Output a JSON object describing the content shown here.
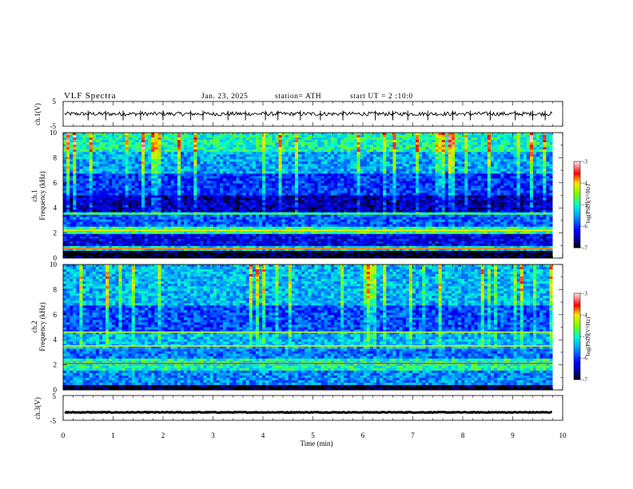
{
  "header": {
    "title": "VLF Spectra",
    "date": "Jan. 23, 2025",
    "station": "station= ATH",
    "start": "start UT =   2 :10:0"
  },
  "chart_data": [
    {
      "type": "line",
      "name": "ch1-waveform",
      "ylabel": "ch.1(V)",
      "ylim": [
        -5,
        5
      ],
      "ytick_labels": [
        "5",
        "-5"
      ],
      "xlim": [
        0,
        10
      ],
      "x_end_min": 9.8,
      "mean_value": 0,
      "noise_amplitude": 0.8,
      "spikes_min": [
        0.5,
        0.85,
        1.2,
        1.55,
        2.0,
        2.55,
        2.8,
        3.3,
        3.65,
        4.05,
        4.3,
        4.75,
        5.15,
        5.6,
        6.25,
        6.6,
        6.9,
        7.3,
        7.8,
        8.15,
        8.55,
        9.05,
        9.4,
        9.65
      ]
    },
    {
      "type": "heatmap",
      "name": "ch1-spectrogram",
      "ylabel": "ch.1",
      "ylabel2": "Frequency (kHz)",
      "ylim": [
        0,
        10
      ],
      "ytick_labels": [
        "10",
        "8",
        "6",
        "4",
        "2",
        "0"
      ],
      "xlim": [
        0,
        10
      ],
      "x_end_min": 9.8,
      "colorbar": {
        "label": "log(PSD)(V²/Hz)",
        "range": [
          -7,
          -3
        ],
        "tick_labels": [
          "-3",
          "-4",
          "-5",
          "-6",
          "-7"
        ]
      },
      "bands": [
        {
          "from_khz": 0.0,
          "to_khz": 0.5,
          "log_psd": -7.0
        },
        {
          "from_khz": 0.5,
          "to_khz": 0.9,
          "log_psd": -5.2
        },
        {
          "from_khz": 0.9,
          "to_khz": 1.9,
          "log_psd": -6.3
        },
        {
          "from_khz": 1.9,
          "to_khz": 2.5,
          "log_psd": -4.9
        },
        {
          "from_khz": 2.5,
          "to_khz": 3.4,
          "log_psd": -5.8
        },
        {
          "from_khz": 3.4,
          "to_khz": 3.7,
          "log_psd": -5.1
        },
        {
          "from_khz": 3.7,
          "to_khz": 5.0,
          "log_psd": -6.5
        },
        {
          "from_khz": 5.0,
          "to_khz": 6.8,
          "log_psd": -6.0
        },
        {
          "from_khz": 6.8,
          "to_khz": 8.5,
          "log_psd": -5.5
        },
        {
          "from_khz": 8.5,
          "to_khz": 10.0,
          "log_psd": -5.0
        }
      ],
      "lines_khz": [
        {
          "khz": 0.75,
          "log_psd": -3.8
        },
        {
          "khz": 2.2,
          "log_psd": -4.0
        },
        {
          "khz": 3.5,
          "log_psd": -4.8
        }
      ]
    },
    {
      "type": "heatmap",
      "name": "ch2-spectrogram",
      "ylabel": "ch.2",
      "ylabel2": "Frequency (kHz)",
      "ylim": [
        0,
        10
      ],
      "ytick_labels": [
        "10",
        "8",
        "6",
        "4",
        "2",
        "0"
      ],
      "xlim": [
        0,
        10
      ],
      "x_end_min": 9.8,
      "colorbar": {
        "label": "log(PSD)(V²/Hz)",
        "range": [
          -7,
          -3
        ],
        "tick_labels": [
          "-3",
          "-4",
          "-5",
          "-6",
          "-7"
        ]
      },
      "bands": [
        {
          "from_khz": 0.0,
          "to_khz": 0.3,
          "log_psd": -7.0
        },
        {
          "from_khz": 0.3,
          "to_khz": 1.5,
          "log_psd": -5.6
        },
        {
          "from_khz": 1.5,
          "to_khz": 2.5,
          "log_psd": -5.0
        },
        {
          "from_khz": 2.5,
          "to_khz": 3.3,
          "log_psd": -5.7
        },
        {
          "from_khz": 3.3,
          "to_khz": 4.6,
          "log_psd": -5.4
        },
        {
          "from_khz": 4.6,
          "to_khz": 6.8,
          "log_psd": -5.9
        },
        {
          "from_khz": 6.8,
          "to_khz": 10.0,
          "log_psd": -5.4
        }
      ],
      "lines_khz": [
        {
          "khz": 2.1,
          "log_psd": -3.7
        },
        {
          "khz": 3.5,
          "log_psd": -4.1
        },
        {
          "khz": 4.6,
          "log_psd": -4.2
        }
      ]
    },
    {
      "type": "line",
      "name": "ch3-waveform",
      "ylabel": "ch.3(V)",
      "ylim": [
        -5,
        5
      ],
      "ytick_labels": [
        "5",
        "-5"
      ],
      "xlim": [
        0,
        10
      ],
      "x_end_min": 9.8,
      "mean_value": -1.8,
      "noise_amplitude": 0.15,
      "xlabel": "Time (min)",
      "xtick_labels": [
        "0",
        "1",
        "2",
        "3",
        "4",
        "5",
        "6",
        "7",
        "8",
        "9",
        "10"
      ]
    }
  ]
}
